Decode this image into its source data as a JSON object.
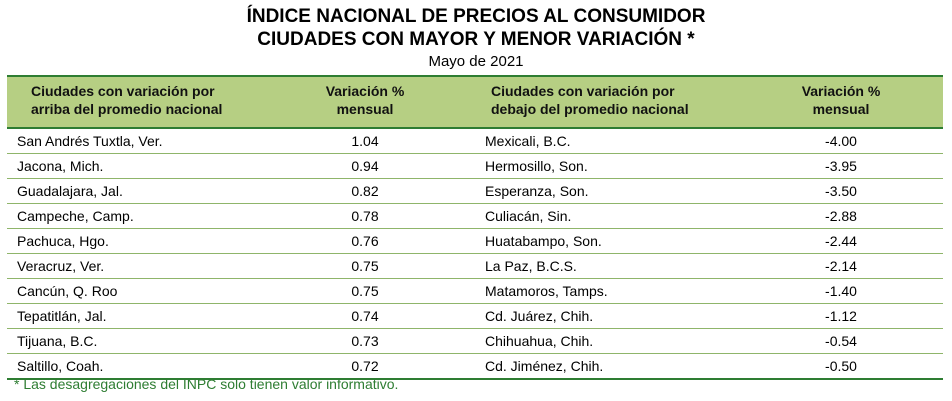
{
  "title_line1": "ÍNDICE NACIONAL DE PRECIOS AL CONSUMIDOR",
  "title_line2": "CIUDADES CON MAYOR Y MENOR VARIACIÓN *",
  "subtitle": "Mayo de 2021",
  "headers": {
    "above_city_1": "Ciudades con variación por",
    "above_city_2": "arriba del promedio nacional",
    "var_1": "Variación %",
    "var_2": "mensual",
    "below_city_1": "Ciudades con variación por",
    "below_city_2": "debajo del promedio nacional"
  },
  "footnote": "*  Las desagregaciones del INPC solo tienen valor informativo.",
  "colors": {
    "header_bg": "#b6cf83",
    "rule": "#2e7d32",
    "footnote": "#2e7d32"
  },
  "chart_data": {
    "type": "table",
    "columns": [
      "Ciudades con variación por arriba del promedio nacional",
      "Variación % mensual",
      "Ciudades con variación por debajo del promedio nacional",
      "Variación % mensual"
    ],
    "rows": [
      {
        "above_city": "San Andrés Tuxtla, Ver.",
        "above_value": "1.04",
        "below_city": "Mexicali, B.C.",
        "below_value": "-4.00"
      },
      {
        "above_city": "Jacona, Mich.",
        "above_value": "0.94",
        "below_city": "Hermosillo, Son.",
        "below_value": "-3.95"
      },
      {
        "above_city": "Guadalajara, Jal.",
        "above_value": "0.82",
        "below_city": "Esperanza, Son.",
        "below_value": "-3.50"
      },
      {
        "above_city": "Campeche, Camp.",
        "above_value": "0.78",
        "below_city": "Culiacán, Sin.",
        "below_value": "-2.88"
      },
      {
        "above_city": "Pachuca, Hgo.",
        "above_value": "0.76",
        "below_city": "Huatabampo, Son.",
        "below_value": "-2.44"
      },
      {
        "above_city": "Veracruz, Ver.",
        "above_value": "0.75",
        "below_city": "La Paz, B.C.S.",
        "below_value": "-2.14"
      },
      {
        "above_city": "Cancún, Q. Roo",
        "above_value": "0.75",
        "below_city": "Matamoros, Tamps.",
        "below_value": "-1.40"
      },
      {
        "above_city": "Tepatitlán, Jal.",
        "above_value": "0.74",
        "below_city": "Cd. Juárez, Chih.",
        "below_value": "-1.12"
      },
      {
        "above_city": "Tijuana, B.C.",
        "above_value": "0.73",
        "below_city": "Chihuahua, Chih.",
        "below_value": "-0.54"
      },
      {
        "above_city": "Saltillo, Coah.",
        "above_value": "0.72",
        "below_city": "Cd. Jiménez, Chih.",
        "below_value": "-0.50"
      }
    ]
  }
}
